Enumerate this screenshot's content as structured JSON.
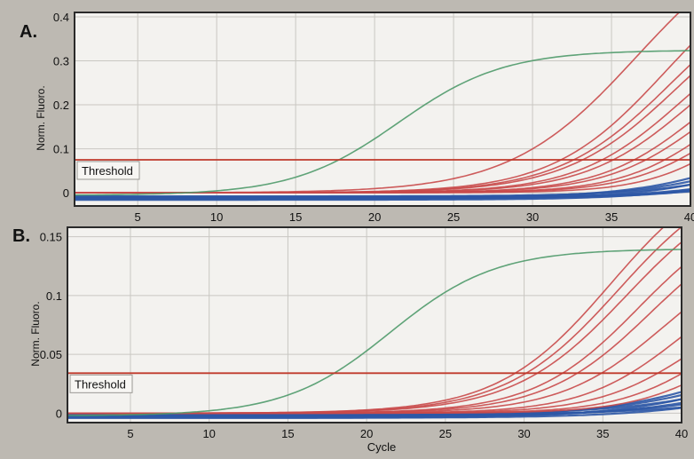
{
  "chart_data": [
    {
      "type": "line",
      "panel_label": "A.",
      "ylabel": "Norm. Fluoro.",
      "xlabel": "",
      "xlim": [
        1,
        40
      ],
      "ylim": [
        -0.03,
        0.41
      ],
      "xticks": [
        5,
        10,
        15,
        20,
        25,
        30,
        35,
        40
      ],
      "yticks": [
        0,
        0.1,
        0.2,
        0.3,
        0.4
      ],
      "ytick_labels": [
        "0",
        "0.1",
        "0.2",
        "0.3",
        "0.4"
      ],
      "threshold": {
        "label": "Threshold",
        "value": 0.075,
        "color": "#c0392b"
      },
      "grid": true,
      "series_groups": [
        {
          "group": "positive-control",
          "color": "#4f9a6a",
          "curves": [
            {
              "ct": 21.5,
              "max": 0.33,
              "k": 0.3,
              "base": -0.005
            }
          ]
        },
        {
          "group": "red-samples",
          "color": "#c94a4a",
          "curves": [
            {
              "ct": 36.6,
              "max": 0.62,
              "k": 0.25,
              "base": 0.0
            },
            {
              "ct": 38.4,
              "max": 0.55,
              "k": 0.28,
              "base": 0.0
            },
            {
              "ct": 38.8,
              "max": 0.5,
              "k": 0.28,
              "base": 0.0
            },
            {
              "ct": 39.2,
              "max": 0.48,
              "k": 0.28,
              "base": 0.0
            },
            {
              "ct": 39.5,
              "max": 0.42,
              "k": 0.3,
              "base": 0.0
            },
            {
              "ct": 40.0,
              "max": 0.4,
              "k": 0.3,
              "base": 0.0
            },
            {
              "ct": 40.5,
              "max": 0.35,
              "k": 0.32,
              "base": 0.0
            },
            {
              "ct": 41.0,
              "max": 0.33,
              "k": 0.32,
              "base": 0.0
            },
            {
              "ct": 41.6,
              "max": 0.3,
              "k": 0.34,
              "base": 0.0
            },
            {
              "ct": 42.2,
              "max": 0.28,
              "k": 0.34,
              "base": 0.0
            },
            {
              "ct": 43.0,
              "max": 0.26,
              "k": 0.36,
              "base": 0.0
            }
          ]
        },
        {
          "group": "blue-samples",
          "color": "#2e58a6",
          "curves": [
            {
              "ct": 46,
              "max": 0.25,
              "k": 0.25,
              "base": -0.012
            },
            {
              "ct": 46.5,
              "max": 0.22,
              "k": 0.25,
              "base": -0.01
            },
            {
              "ct": 47,
              "max": 0.22,
              "k": 0.25,
              "base": -0.014
            },
            {
              "ct": 47.5,
              "max": 0.2,
              "k": 0.25,
              "base": -0.008
            },
            {
              "ct": 48,
              "max": 0.2,
              "k": 0.25,
              "base": -0.016
            },
            {
              "ct": 48.5,
              "max": 0.18,
              "k": 0.25,
              "base": -0.011
            },
            {
              "ct": 49,
              "max": 0.18,
              "k": 0.25,
              "base": -0.013
            },
            {
              "ct": 50,
              "max": 0.16,
              "k": 0.25,
              "base": -0.009
            }
          ]
        }
      ]
    },
    {
      "type": "line",
      "panel_label": "B.",
      "ylabel": "Norm. Fluoro.",
      "xlabel": "Cycle",
      "xlim": [
        1,
        40
      ],
      "ylim": [
        -0.008,
        0.158
      ],
      "xticks": [
        5,
        10,
        15,
        20,
        25,
        30,
        35,
        40
      ],
      "yticks": [
        0,
        0.05,
        0.1,
        0.15
      ],
      "ytick_labels": [
        "0",
        "0.05",
        "0.1",
        "0.15"
      ],
      "threshold": {
        "label": "Threshold",
        "value": 0.034,
        "color": "#c0392b"
      },
      "grid": true,
      "series_groups": [
        {
          "group": "positive-control",
          "color": "#4f9a6a",
          "curves": [
            {
              "ct": 21.5,
              "max": 0.142,
              "k": 0.3,
              "base": -0.002
            }
          ]
        },
        {
          "group": "red-samples",
          "color": "#c94a4a",
          "curves": [
            {
              "ct": 35.5,
              "max": 0.22,
              "k": 0.28,
              "base": 0.0
            },
            {
              "ct": 36.0,
              "max": 0.21,
              "k": 0.28,
              "base": 0.0
            },
            {
              "ct": 36.5,
              "max": 0.2,
              "k": 0.28,
              "base": 0.0
            },
            {
              "ct": 37.3,
              "max": 0.18,
              "k": 0.3,
              "base": 0.0
            },
            {
              "ct": 38.0,
              "max": 0.17,
              "k": 0.3,
              "base": 0.0
            },
            {
              "ct": 39.0,
              "max": 0.15,
              "k": 0.3,
              "base": 0.0
            },
            {
              "ct": 40.0,
              "max": 0.13,
              "k": 0.32,
              "base": 0.0
            },
            {
              "ct": 41.0,
              "max": 0.11,
              "k": 0.32,
              "base": 0.0
            },
            {
              "ct": 42.0,
              "max": 0.1,
              "k": 0.34,
              "base": 0.0
            },
            {
              "ct": 43.0,
              "max": 0.09,
              "k": 0.34,
              "base": 0.0
            }
          ]
        },
        {
          "group": "blue-samples",
          "color": "#2e58a6",
          "curves": [
            {
              "ct": 46,
              "max": 0.1,
              "k": 0.22,
              "base": -0.003
            },
            {
              "ct": 46.5,
              "max": 0.09,
              "k": 0.22,
              "base": -0.002
            },
            {
              "ct": 47,
              "max": 0.09,
              "k": 0.22,
              "base": -0.004
            },
            {
              "ct": 47.5,
              "max": 0.08,
              "k": 0.22,
              "base": -0.001
            },
            {
              "ct": 48,
              "max": 0.08,
              "k": 0.22,
              "base": -0.003
            },
            {
              "ct": 48.5,
              "max": 0.07,
              "k": 0.22,
              "base": -0.002
            },
            {
              "ct": 49,
              "max": 0.07,
              "k": 0.22,
              "base": -0.004
            },
            {
              "ct": 50,
              "max": 0.06,
              "k": 0.22,
              "base": -0.001
            }
          ]
        }
      ]
    }
  ]
}
